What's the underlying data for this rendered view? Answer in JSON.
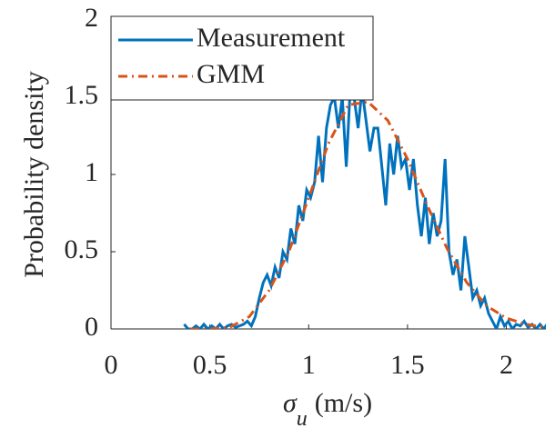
{
  "chart_data": {
    "type": "line",
    "y_label": "Probability density",
    "x_label": {
      "symbol": "σ",
      "subscript": "u",
      "unit": "(m/s)"
    },
    "xlim": [
      0,
      2.2
    ],
    "ylim": [
      0,
      2
    ],
    "xticks": [
      0,
      0.5,
      1,
      1.5,
      2
    ],
    "yticks": [
      0,
      0.5,
      1,
      1.5,
      2
    ],
    "legend": "upper left",
    "series": [
      {
        "name": "Measurement",
        "color": "#0072bd",
        "style": "solid",
        "x": [
          0.37,
          0.39,
          0.41,
          0.43,
          0.45,
          0.47,
          0.49,
          0.51,
          0.53,
          0.55,
          0.57,
          0.59,
          0.61,
          0.63,
          0.65,
          0.67,
          0.69,
          0.71,
          0.73,
          0.75,
          0.77,
          0.79,
          0.81,
          0.83,
          0.85,
          0.87,
          0.89,
          0.91,
          0.93,
          0.95,
          0.97,
          0.99,
          1.01,
          1.03,
          1.05,
          1.07,
          1.09,
          1.11,
          1.13,
          1.15,
          1.17,
          1.19,
          1.21,
          1.23,
          1.25,
          1.27,
          1.29,
          1.31,
          1.33,
          1.35,
          1.37,
          1.39,
          1.41,
          1.43,
          1.45,
          1.47,
          1.49,
          1.51,
          1.53,
          1.55,
          1.57,
          1.59,
          1.61,
          1.63,
          1.65,
          1.67,
          1.69,
          1.71,
          1.73,
          1.75,
          1.77,
          1.79,
          1.81,
          1.83,
          1.85,
          1.87,
          1.89,
          1.91,
          1.93,
          1.95,
          1.97,
          1.99,
          2.01,
          2.03,
          2.05,
          2.07,
          2.09,
          2.11,
          2.13,
          2.15,
          2.17,
          2.19,
          2.21
        ],
        "values": [
          0.03,
          0,
          0,
          0.02,
          0,
          0.03,
          0,
          0.02,
          0,
          0.03,
          0,
          0.02,
          0.03,
          0.01,
          0.02,
          0.03,
          0.05,
          0.02,
          0.08,
          0.2,
          0.3,
          0.35,
          0.28,
          0.4,
          0.33,
          0.5,
          0.45,
          0.65,
          0.55,
          0.8,
          0.7,
          0.9,
          0.85,
          0.95,
          1.25,
          0.95,
          1.3,
          1.45,
          1.5,
          1.3,
          1.5,
          1.05,
          1.55,
          1.5,
          1.3,
          1.55,
          1.35,
          1.15,
          1.3,
          1.3,
          1.05,
          0.8,
          1.2,
          1.0,
          1.25,
          1.05,
          1.1,
          0.9,
          1.1,
          0.8,
          0.6,
          0.85,
          0.55,
          0.75,
          0.6,
          0.7,
          1.1,
          0.5,
          0.35,
          0.45,
          0.25,
          0.6,
          0.4,
          0.2,
          0.25,
          0.15,
          0.2,
          0.1,
          0.05,
          0,
          0.08,
          0.02,
          0.05,
          0,
          0.03,
          0.02,
          0.05,
          0.01,
          0.03,
          0,
          0.03,
          0,
          0.04
        ]
      },
      {
        "name": "GMM",
        "color": "#d95319",
        "style": "dashdot",
        "x": [
          0.4,
          0.5,
          0.6,
          0.7,
          0.8,
          0.9,
          1.0,
          1.1,
          1.2,
          1.3,
          1.4,
          1.5,
          1.6,
          1.7,
          1.8,
          1.9,
          2.0,
          2.1,
          2.2
        ],
        "values": [
          0,
          0,
          0.01,
          0.08,
          0.25,
          0.5,
          0.85,
          1.2,
          1.45,
          1.47,
          1.35,
          1.1,
          0.8,
          0.52,
          0.3,
          0.15,
          0.07,
          0.03,
          0.01
        ]
      }
    ]
  }
}
